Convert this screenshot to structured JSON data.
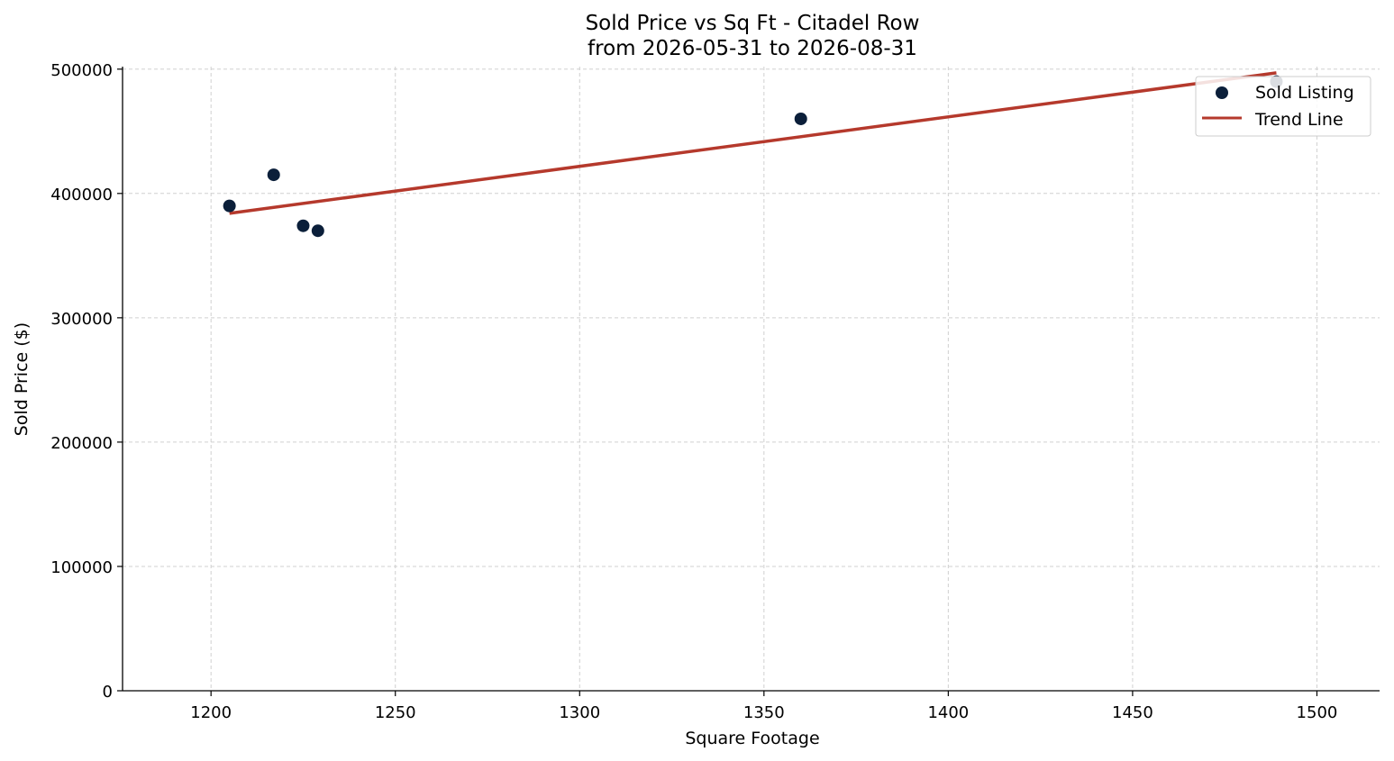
{
  "chart_data": {
    "type": "scatter",
    "title": "Sold Price vs Sq Ft - Citadel Row",
    "subtitle": "from 2026-05-31 to 2026-08-31",
    "xlabel": "Square Footage",
    "ylabel": "Sold Price ($)",
    "xlim": [
      1176,
      1517
    ],
    "ylim": [
      0,
      502000
    ],
    "x_ticks": [
      1200,
      1250,
      1300,
      1350,
      1400,
      1450,
      1500
    ],
    "y_ticks": [
      0,
      100000,
      200000,
      300000,
      400000,
      500000
    ],
    "grid": true,
    "legend_position": "top-right",
    "series": [
      {
        "name": "Sold Listing",
        "kind": "scatter",
        "color": "#0b1f3a",
        "points": [
          {
            "x": 1205,
            "y": 390000
          },
          {
            "x": 1217,
            "y": 415000
          },
          {
            "x": 1225,
            "y": 374000
          },
          {
            "x": 1229,
            "y": 370000
          },
          {
            "x": 1360,
            "y": 460000
          },
          {
            "x": 1489,
            "y": 490000
          }
        ]
      },
      {
        "name": "Trend Line",
        "kind": "line",
        "color": "#b5392c",
        "points": [
          {
            "x": 1205,
            "y": 384000
          },
          {
            "x": 1489,
            "y": 497000
          }
        ]
      }
    ]
  }
}
